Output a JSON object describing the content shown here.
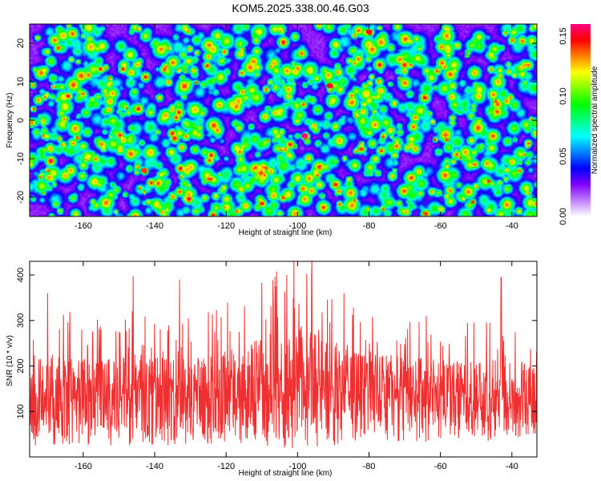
{
  "title": "KOM5.2025.338.00.46.G03",
  "chart_data": [
    {
      "type": "heatmap",
      "xlabel": "Height of straight line (km)",
      "ylabel": "Frequency (Hz)",
      "xlim": [
        -175,
        -33
      ],
      "ylim": [
        -25,
        25
      ],
      "x_ticks": [
        -160,
        -140,
        -120,
        -100,
        -80,
        -60,
        -40
      ],
      "y_ticks": [
        -20,
        -10,
        0,
        10,
        20
      ],
      "colorbar": {
        "label": "Normalized spectral amplitude",
        "range": [
          0,
          0.16
        ],
        "ticks": [
          "0.00",
          "0.05",
          "0.10",
          "0.15"
        ],
        "colors": [
          "#ffffff",
          "#c080ff",
          "#8000ff",
          "#0000ff",
          "#0080ff",
          "#00ffff",
          "#00ff80",
          "#00ff00",
          "#80ff00",
          "#ffff00",
          "#ff8000",
          "#ff0000",
          "#ff0080"
        ]
      },
      "peaks": [
        {
          "x": -98,
          "y": -4,
          "v": 0.16
        },
        {
          "x": -91,
          "y": 9,
          "v": 0.15
        },
        {
          "x": -80,
          "y": 23,
          "v": 0.15
        },
        {
          "x": -143,
          "y": -13,
          "v": 0.14
        },
        {
          "x": -60,
          "y": -23,
          "v": 0.11
        },
        {
          "x": -112,
          "y": 22,
          "v": 0.09
        }
      ]
    },
    {
      "type": "line",
      "xlabel": "Height of straight line (km)",
      "ylabel": "SNR (10 * v/v)",
      "xlim": [
        -175,
        -33
      ],
      "ylim": [
        0,
        430
      ],
      "x_ticks": [
        -160,
        -140,
        -120,
        -100,
        -80,
        -60,
        -40
      ],
      "y_ticks": [
        100,
        200,
        300,
        400
      ],
      "color": "#f03030",
      "envelope": {
        "x": [
          -175,
          -165,
          -155,
          -145,
          -135,
          -125,
          -115,
          -105,
          -100,
          -95,
          -85,
          -75,
          -65,
          -55,
          -45,
          -35
        ],
        "baseline": [
          125,
          125,
          120,
          125,
          120,
          125,
          135,
          150,
          155,
          145,
          135,
          130,
          125,
          125,
          125,
          125
        ],
        "spread": [
          140,
          130,
          130,
          135,
          125,
          130,
          150,
          175,
          190,
          165,
          145,
          130,
          125,
          115,
          120,
          110
        ]
      },
      "notable_peaks": [
        {
          "x": -101,
          "y": 430
        },
        {
          "x": -96,
          "y": 430
        },
        {
          "x": -103,
          "y": 400
        },
        {
          "x": -146,
          "y": 398
        },
        {
          "x": -133,
          "y": 390
        },
        {
          "x": -87,
          "y": 360
        },
        {
          "x": -43,
          "y": 395
        },
        {
          "x": -170,
          "y": 360
        }
      ]
    }
  ]
}
